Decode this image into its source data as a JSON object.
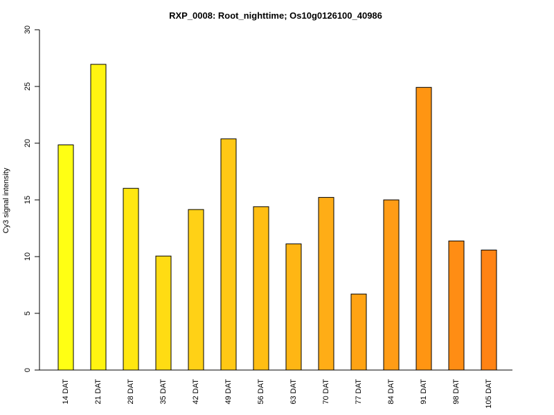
{
  "chart_data": {
    "type": "bar",
    "title": "RXP_0008: Root_nighttime; Os10g0126100_40986",
    "xlabel": "",
    "ylabel": "Cy3 signal intensity",
    "ylim": [
      0,
      30
    ],
    "yticks": [
      0,
      5,
      10,
      15,
      20,
      25,
      30
    ],
    "grid": false,
    "legend": "none",
    "categories": [
      "14 DAT",
      "21 DAT",
      "28 DAT",
      "35 DAT",
      "42 DAT",
      "49 DAT",
      "56 DAT",
      "63 DAT",
      "70 DAT",
      "77 DAT",
      "84 DAT",
      "91 DAT",
      "98 DAT",
      "105 DAT"
    ],
    "values": [
      19.85,
      26.95,
      16.02,
      10.05,
      14.15,
      20.38,
      14.4,
      11.12,
      15.22,
      6.7,
      15.0,
      24.92,
      11.38,
      10.58
    ],
    "colors": [
      "#ffff14",
      "#fff411",
      "#ffe710",
      "#ffdc13",
      "#ffd116",
      "#ffc815",
      "#ffbe13",
      "#ffb614",
      "#ffad16",
      "#ffa314",
      "#ff9c16",
      "#ff9512",
      "#ff8d14",
      "#ff8314"
    ]
  }
}
